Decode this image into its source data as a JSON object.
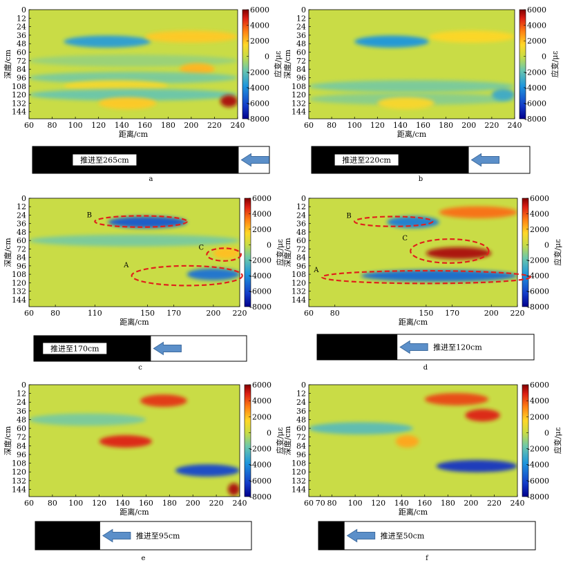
{
  "chart_data": [
    {
      "panel": "a",
      "type": "heatmap",
      "x_ticks": [
        60,
        80,
        100,
        120,
        140,
        160,
        180,
        200,
        220,
        240
      ],
      "xlim": [
        60,
        240
      ],
      "y_ticks": [
        0,
        12,
        24,
        36,
        48,
        60,
        72,
        84,
        96,
        108,
        120,
        132,
        144
      ],
      "ylim": [
        0,
        154
      ],
      "xlabel": "距离/cm",
      "ylabel": "深度/cm",
      "colorbar": {
        "label": "应变/με",
        "ticks": [
          6000,
          4000,
          2000,
          0,
          -2000,
          -4000,
          -6000,
          -8000
        ],
        "range": [
          -8000,
          6000
        ]
      },
      "features": [
        {
          "x": [
            90,
            165
          ],
          "y": 45,
          "value": -3500
        },
        {
          "x": [
            160,
            240
          ],
          "y": 38,
          "value": 1800
        },
        {
          "x": [
            60,
            240
          ],
          "y": 72,
          "value": -900
        },
        {
          "x": [
            190,
            220
          ],
          "y": 84,
          "value": 2200
        },
        {
          "x": [
            60,
            240
          ],
          "y": 96,
          "value": -1500
        },
        {
          "x": [
            90,
            180
          ],
          "y": 108,
          "value": 1200
        },
        {
          "x": [
            60,
            240
          ],
          "y": 120,
          "value": -1800
        },
        {
          "x": [
            225,
            240
          ],
          "y": 129,
          "value": 5500
        },
        {
          "x": [
            120,
            170
          ],
          "y": 132,
          "value": 1800
        }
      ],
      "progress": {
        "label": "推进至265cm",
        "advance": 0.87,
        "arrow": "left"
      }
    },
    {
      "panel": "b",
      "type": "heatmap",
      "x_ticks": [
        60,
        80,
        100,
        120,
        140,
        160,
        180,
        200,
        220,
        240
      ],
      "xlim": [
        60,
        240
      ],
      "y_ticks": [
        0,
        12,
        24,
        36,
        48,
        60,
        72,
        84,
        96,
        108,
        120,
        132,
        144
      ],
      "ylim": [
        0,
        154
      ],
      "xlabel": "距离/cm",
      "ylabel": "深度/cm",
      "colorbar": {
        "label": "应变/με",
        "ticks": [
          6000,
          4000,
          2000,
          0,
          -2000,
          -4000,
          -6000,
          -8000
        ],
        "range": [
          -8000,
          6000
        ]
      },
      "features": [
        {
          "x": [
            100,
            165
          ],
          "y": 45,
          "value": -3800
        },
        {
          "x": [
            165,
            240
          ],
          "y": 38,
          "value": 1500
        },
        {
          "x": [
            60,
            240
          ],
          "y": 108,
          "value": -1500
        },
        {
          "x": [
            60,
            240
          ],
          "y": 126,
          "value": -1200
        },
        {
          "x": [
            220,
            240
          ],
          "y": 120,
          "value": -3000
        },
        {
          "x": [
            120,
            170
          ],
          "y": 132,
          "value": 1400
        }
      ],
      "progress": {
        "label": "推进至220cm",
        "advance": 0.72,
        "arrow": "left"
      }
    },
    {
      "panel": "c",
      "type": "heatmap",
      "x_ticks": [
        60,
        80,
        110,
        150,
        170,
        200,
        220
      ],
      "xlim": [
        60,
        220
      ],
      "y_ticks": [
        0,
        12,
        24,
        36,
        48,
        60,
        72,
        84,
        96,
        108,
        120,
        132,
        144
      ],
      "ylim": [
        0,
        154
      ],
      "xlabel": "距离/cm",
      "ylabel": "深度/cm",
      "colorbar": {
        "label": "应变/με",
        "ticks": [
          6000,
          4000,
          2000,
          0,
          -2000,
          -4000,
          -6000,
          -8000
        ],
        "range": [
          -8000,
          6000
        ]
      },
      "features": [
        {
          "x": [
            120,
            180
          ],
          "y": 34,
          "value": -5500
        },
        {
          "x": [
            180,
            220
          ],
          "y": 108,
          "value": -4800
        },
        {
          "x": [
            200,
            220
          ],
          "y": 78,
          "value": 2000
        },
        {
          "x": [
            60,
            220
          ],
          "y": 60,
          "value": -1500
        }
      ],
      "zones": [
        {
          "label": "A",
          "cx": 180,
          "cy": 110,
          "rx": 42,
          "ry": 14
        },
        {
          "label": "B",
          "cx": 145,
          "cy": 33,
          "rx": 35,
          "ry": 8
        },
        {
          "label": "C",
          "cx": 208,
          "cy": 80,
          "rx": 13,
          "ry": 9
        }
      ],
      "progress": {
        "label": "推进至170cm",
        "advance": 0.55,
        "arrow": "left"
      }
    },
    {
      "panel": "d",
      "type": "heatmap",
      "x_ticks": [
        60,
        80,
        150,
        170,
        200,
        220
      ],
      "xlim": [
        60,
        220
      ],
      "y_ticks": [
        0,
        12,
        24,
        36,
        48,
        60,
        72,
        84,
        96,
        108,
        120,
        132,
        144
      ],
      "ylim": [
        0,
        154
      ],
      "xlabel": "距离/cm",
      "ylabel": "深度/cm",
      "colorbar": {
        "label": "应变/με",
        "ticks": [
          6000,
          4000,
          2000,
          0,
          -2000,
          -4000,
          -6000,
          -8000
        ],
        "range": [
          -8000,
          6000
        ]
      },
      "features": [
        {
          "x": [
            160,
            220
          ],
          "y": 20,
          "value": 3500
        },
        {
          "x": [
            150,
            200
          ],
          "y": 78,
          "value": 5500
        },
        {
          "x": [
            100,
            220
          ],
          "y": 110,
          "value": -5000
        },
        {
          "x": [
            120,
            160
          ],
          "y": 34,
          "value": -4500
        }
      ],
      "zones": [
        {
          "label": "A",
          "cx": 150,
          "cy": 112,
          "rx": 80,
          "ry": 9
        },
        {
          "label": "B",
          "cx": 125,
          "cy": 33,
          "rx": 30,
          "ry": 7
        },
        {
          "label": "C",
          "cx": 168,
          "cy": 75,
          "rx": 30,
          "ry": 17
        }
      ],
      "progress": {
        "label": "推进至120cm",
        "advance": 0.37,
        "arrow": "left"
      }
    },
    {
      "panel": "e",
      "type": "heatmap",
      "x_ticks": [
        60,
        80,
        100,
        120,
        140,
        160,
        180,
        200,
        220,
        240
      ],
      "xlim": [
        60,
        240
      ],
      "y_ticks": [
        0,
        12,
        24,
        36,
        48,
        60,
        72,
        84,
        96,
        108,
        120,
        132,
        144
      ],
      "ylim": [
        0,
        154
      ],
      "xlabel": "距离/cm",
      "ylabel": "深度/cm",
      "colorbar": {
        "label": "应变/με",
        "ticks": [
          6000,
          4000,
          2000,
          0,
          -2000,
          -4000,
          -6000,
          -8000
        ],
        "range": [
          -8000,
          6000
        ]
      },
      "features": [
        {
          "x": [
            155,
            195
          ],
          "y": 22,
          "value": 4500
        },
        {
          "x": [
            120,
            165
          ],
          "y": 78,
          "value": 4800
        },
        {
          "x": [
            185,
            240
          ],
          "y": 118,
          "value": -6000
        },
        {
          "x": [
            60,
            160
          ],
          "y": 48,
          "value": -1500
        },
        {
          "x": [
            230,
            240
          ],
          "y": 144,
          "value": 5500
        }
      ],
      "progress": {
        "label": "推进至95cm",
        "advance": 0.3,
        "arrow": "left"
      }
    },
    {
      "panel": "f",
      "type": "heatmap",
      "x_ticks": [
        60,
        70,
        80,
        100,
        120,
        140,
        160,
        180,
        200,
        220,
        240
      ],
      "xlim": [
        60,
        240
      ],
      "y_ticks": [
        0,
        12,
        24,
        36,
        48,
        60,
        72,
        84,
        96,
        108,
        120,
        132,
        144
      ],
      "ylim": [
        0,
        154
      ],
      "xlabel": "距离/cm",
      "ylabel": "深度/cm",
      "colorbar": {
        "label": "应变/με",
        "ticks": [
          6000,
          4000,
          2000,
          0,
          -2000,
          -4000,
          -6000,
          -8000
        ],
        "range": [
          -8000,
          6000
        ]
      },
      "features": [
        {
          "x": [
            160,
            215
          ],
          "y": 20,
          "value": 4200
        },
        {
          "x": [
            195,
            225
          ],
          "y": 42,
          "value": 4800
        },
        {
          "x": [
            60,
            150
          ],
          "y": 60,
          "value": -2200
        },
        {
          "x": [
            170,
            240
          ],
          "y": 112,
          "value": -6500
        },
        {
          "x": [
            135,
            155
          ],
          "y": 78,
          "value": 2500
        }
      ],
      "progress": {
        "label": "推进至50cm",
        "advance": 0.12,
        "arrow": "left"
      }
    }
  ]
}
